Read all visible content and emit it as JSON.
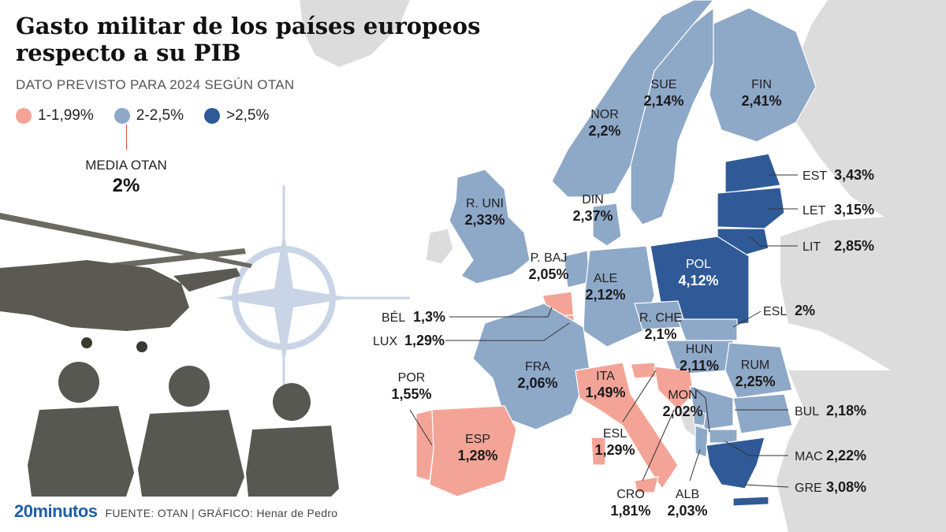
{
  "title_line1": "Gasto militar de los países europeos",
  "title_line2": "respecto a su PIB",
  "subtitle": "DATO PREVISTO PARA 2024 SEGÚN OTAN",
  "legend": [
    {
      "label": "1-1,99%",
      "color": "#f4a497"
    },
    {
      "label": "2-2,5%",
      "color": "#8ea8c8"
    },
    {
      "label": ">2,5%",
      "color": "#2f5a97"
    }
  ],
  "average": {
    "label": "MEDIA OTAN",
    "value": "2%"
  },
  "colors": {
    "low": "#f4a497",
    "mid": "#8ea8c8",
    "high": "#2f5a97",
    "nonmember": "#dcdcdc",
    "emblem": "#c9d5e6"
  },
  "countries": [
    {
      "code": "SUE",
      "value": "2,14%",
      "category": "mid"
    },
    {
      "code": "FIN",
      "value": "2,41%",
      "category": "mid"
    },
    {
      "code": "NOR",
      "value": "2,2%",
      "category": "mid"
    },
    {
      "code": "R. UNI",
      "value": "2,33%",
      "category": "mid"
    },
    {
      "code": "DIN",
      "value": "2,37%",
      "category": "mid"
    },
    {
      "code": "EST",
      "value": "3,43%",
      "category": "high"
    },
    {
      "code": "LET",
      "value": "3,15%",
      "category": "high"
    },
    {
      "code": "LIT",
      "value": "2,85%",
      "category": "high"
    },
    {
      "code": "P. BAJ",
      "value": "2,05%",
      "category": "mid"
    },
    {
      "code": "ALE",
      "value": "2,12%",
      "category": "mid"
    },
    {
      "code": "POL",
      "value": "4,12%",
      "category": "high"
    },
    {
      "code": "BÉL",
      "value": "1,3%",
      "category": "low"
    },
    {
      "code": "LUX",
      "value": "1,29%",
      "category": "low"
    },
    {
      "code": "R. CHE",
      "value": "2,1%",
      "category": "mid"
    },
    {
      "code": "ESL",
      "value": "2%",
      "category": "mid"
    },
    {
      "code": "HUN",
      "value": "2,11%",
      "category": "mid"
    },
    {
      "code": "RUM",
      "value": "2,25%",
      "category": "mid"
    },
    {
      "code": "FRA",
      "value": "2,06%",
      "category": "mid"
    },
    {
      "code": "ITA",
      "value": "1,49%",
      "category": "low"
    },
    {
      "code": "POR",
      "value": "1,55%",
      "category": "low"
    },
    {
      "code": "MON",
      "value": "2,02%",
      "category": "mid"
    },
    {
      "code": "BUL",
      "value": "2,18%",
      "category": "mid"
    },
    {
      "code": "ESP",
      "value": "1,28%",
      "category": "low"
    },
    {
      "code": "ESL",
      "value": "1,29%",
      "category": "low"
    },
    {
      "code": "MAC",
      "value": "2,22%",
      "category": "mid"
    },
    {
      "code": "CRO",
      "value": "1,81%",
      "category": "low"
    },
    {
      "code": "ALB",
      "value": "2,03%",
      "category": "mid"
    },
    {
      "code": "GRE",
      "value": "3,08%",
      "category": "high"
    }
  ],
  "footer": {
    "brand": "20minutos",
    "source": "FUENTE: OTAN  |  GRÁFICO: Henar de Pedro"
  }
}
